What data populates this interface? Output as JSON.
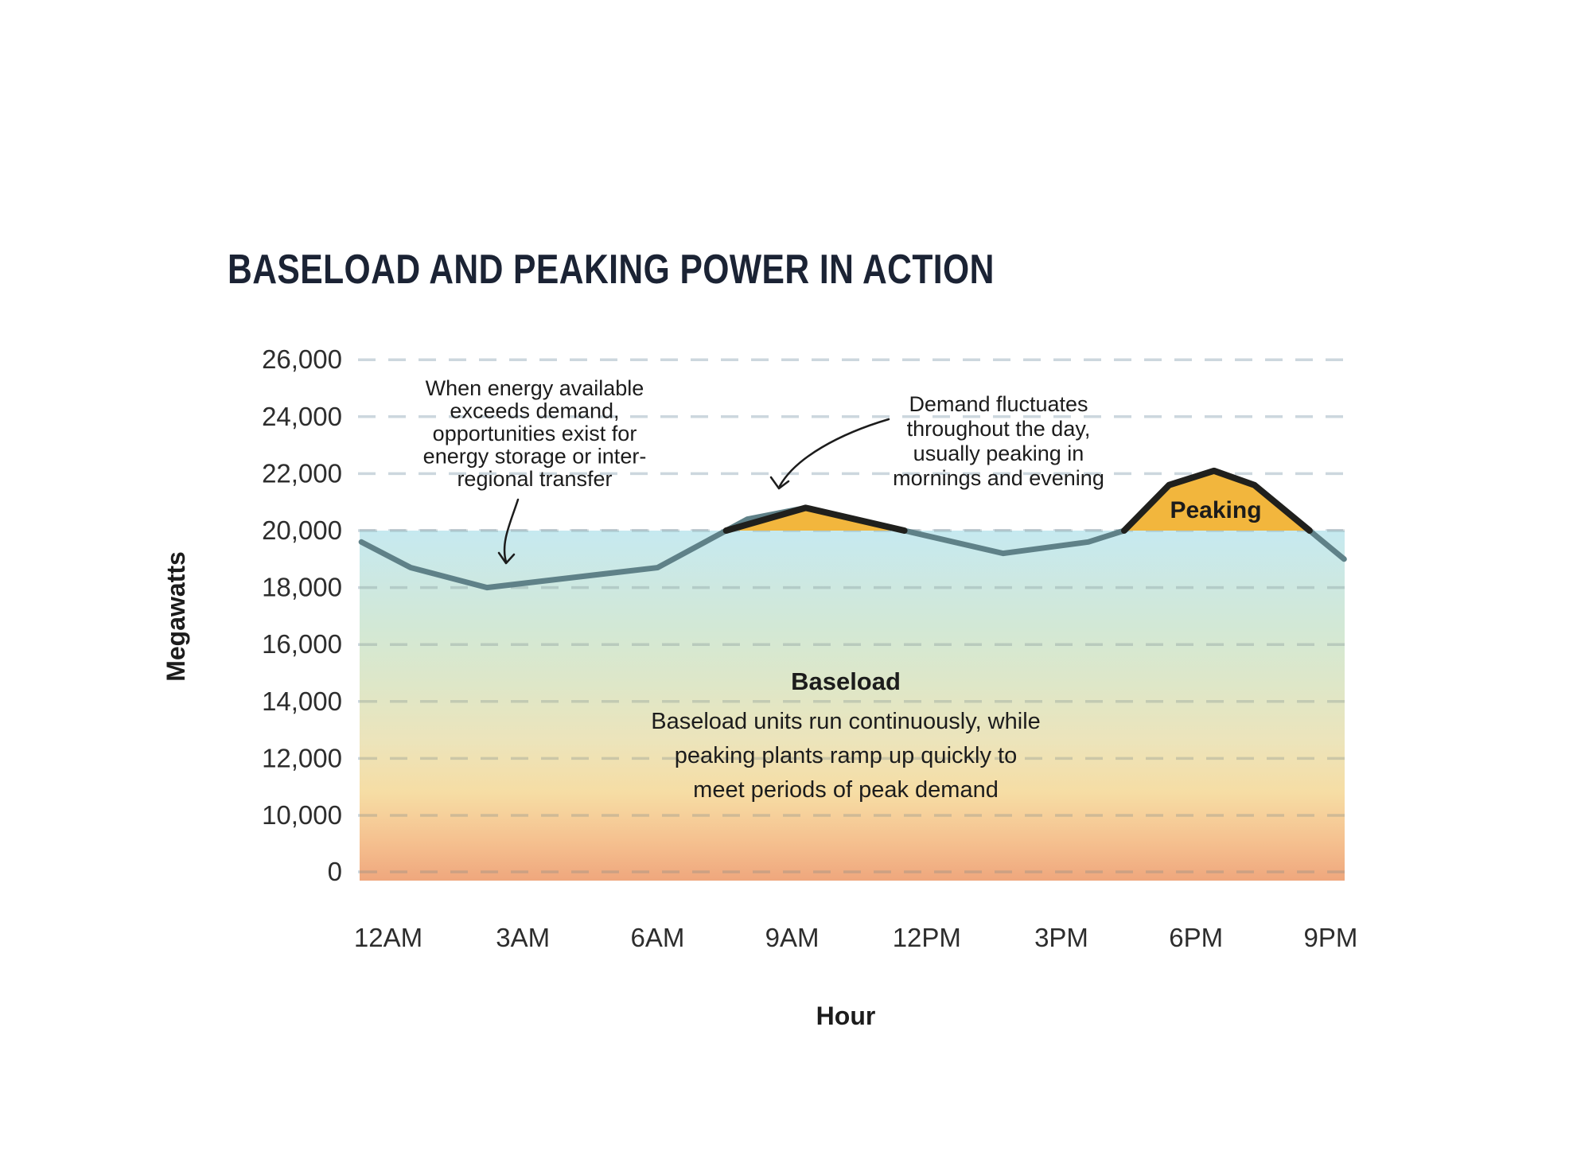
{
  "title": "BASELOAD AND PEAKING POWER IN ACTION",
  "colors": {
    "title_text": "#1b2334",
    "axis_text": "#2d2d2d",
    "annotation_text": "#1c1c1c",
    "demand_line": "#5f8188",
    "demand_line_above_cap": "#20201d",
    "peaking_fill": "#f2b63d",
    "gridline_above": "#ccd7de",
    "gridline_inside": "rgba(110,128,136,0.28)",
    "area_gradient": [
      "#c6e9f0",
      "#d2e8d6",
      "#dee7c8",
      "#ece4bb",
      "#f6dda4",
      "#f5c08f",
      "#efa77d"
    ]
  },
  "chart_data": {
    "type": "area",
    "title": "BASELOAD AND PEAKING POWER IN ACTION",
    "xlabel": "Hour",
    "ylabel": "Megawatts",
    "grid": "dashed horizontal",
    "legend": "none",
    "baseload_cap_mw": 20000,
    "y_axis_note": "segment 0 to 10,000 is compressed to one tick step",
    "y_ticks": [
      {
        "label": "26,000",
        "value": 26000
      },
      {
        "label": "24,000",
        "value": 24000
      },
      {
        "label": "22,000",
        "value": 22000
      },
      {
        "label": "20,000",
        "value": 20000
      },
      {
        "label": "18,000",
        "value": 18000
      },
      {
        "label": "16,000",
        "value": 16000
      },
      {
        "label": "14,000",
        "value": 14000
      },
      {
        "label": "12,000",
        "value": 12000
      },
      {
        "label": "10,000",
        "value": 10000
      },
      {
        "label": "0",
        "value": 0
      }
    ],
    "x_ticks": [
      {
        "label": "12AM",
        "h": 0
      },
      {
        "label": "3AM",
        "h": 3
      },
      {
        "label": "6AM",
        "h": 6
      },
      {
        "label": "9AM",
        "h": 9
      },
      {
        "label": "12PM",
        "h": 12
      },
      {
        "label": "3PM",
        "h": 15
      },
      {
        "label": "6PM",
        "h": 18
      },
      {
        "label": "9PM",
        "h": 21
      }
    ],
    "series": [
      {
        "name": "Demand",
        "unit": "MW",
        "points": [
          {
            "h": -0.6,
            "mw": 19600
          },
          {
            "h": 0.5,
            "mw": 18700
          },
          {
            "h": 2.2,
            "mw": 18000
          },
          {
            "h": 6.0,
            "mw": 18700
          },
          {
            "h": 8.0,
            "mw": 20400
          },
          {
            "h": 9.3,
            "mw": 20800
          },
          {
            "h": 13.7,
            "mw": 19200
          },
          {
            "h": 15.6,
            "mw": 19600
          },
          {
            "h": 16.4,
            "mw": 20000
          },
          {
            "h": 17.4,
            "mw": 21600
          },
          {
            "h": 18.4,
            "mw": 22100
          },
          {
            "h": 19.3,
            "mw": 21600
          },
          {
            "h": 21.3,
            "mw": 19000
          }
        ]
      }
    ]
  },
  "labels": {
    "peaking": "Peaking",
    "baseload_heading": "Baseload",
    "baseload_body_lines": [
      "Baseload units run continuously, while",
      "peaking plants ramp up quickly to",
      "meet periods of peak demand"
    ],
    "hour": "Hour",
    "megawatts": "Megawatts"
  },
  "annotations": {
    "storage": {
      "lines": [
        "When energy available",
        "exceeds demand,",
        "opportunities exist for",
        "energy storage or inter-",
        "regional transfer"
      ]
    },
    "demand": {
      "lines": [
        "Demand fluctuates",
        "throughout the day,",
        "usually peaking in",
        "mornings and evening"
      ]
    }
  }
}
